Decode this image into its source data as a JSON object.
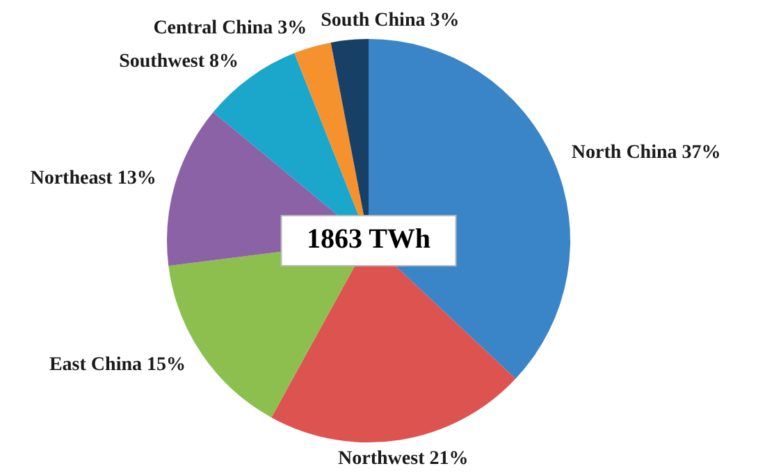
{
  "chart_data": {
    "type": "pie",
    "categories": [
      "North China",
      "Northwest",
      "East China",
      "Northeast",
      "Southwest",
      "Central China",
      "South China"
    ],
    "values": [
      37,
      21,
      15,
      13,
      8,
      3,
      3
    ],
    "value_labels": [
      "37%",
      "21%",
      "15%",
      "13%",
      "8%",
      "3%",
      "3%"
    ],
    "colors": [
      "#3a85c8",
      "#dc5350",
      "#8dbf4f",
      "#8c62a6",
      "#1ba6cc",
      "#f6922e",
      "#183f66"
    ],
    "annotations": [
      "1863 TWh"
    ],
    "legend": false
  }
}
